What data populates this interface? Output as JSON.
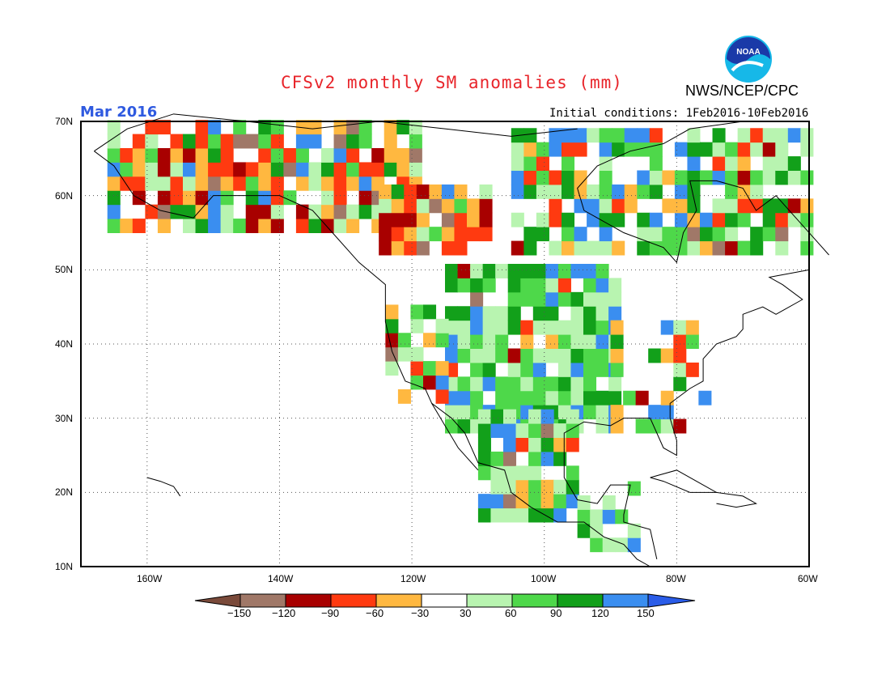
{
  "title": "CFSv2 monthly SM anomalies (mm)",
  "agency": "NWS/NCEP/CPC",
  "valid_month": "Mar 2016",
  "init_conditions": "Initial conditions:  1Feb2016-10Feb2016",
  "logo": {
    "icon": "noaa-logo",
    "text": "NOAA"
  },
  "colors": {
    "title": "#e8242a",
    "valid": "#2f5ae0",
    "land": "#ffffff",
    "coast": "#000000",
    "grid": "#555555"
  },
  "map": {
    "lon_range": [
      -170,
      -60
    ],
    "lat_range": [
      10,
      70
    ],
    "lat_labels": [
      "70N",
      "60N",
      "50N",
      "40N",
      "30N",
      "20N",
      "10N"
    ],
    "lon_labels": [
      "160W",
      "140W",
      "120W",
      "100W",
      "80W",
      "60W"
    ]
  },
  "colorbar": {
    "labels": [
      "−150",
      "−120",
      "−90",
      "−60",
      "−30",
      "30",
      "60",
      "90",
      "120",
      "150"
    ],
    "colors": [
      "#7a4a3a",
      "#a07868",
      "#a80000",
      "#ff3a10",
      "#ffb840",
      "#ffffff",
      "#b8f4b0",
      "#4ed84a",
      "#12a01a",
      "#3a8ef0",
      "#2a5ce8"
    ]
  }
}
